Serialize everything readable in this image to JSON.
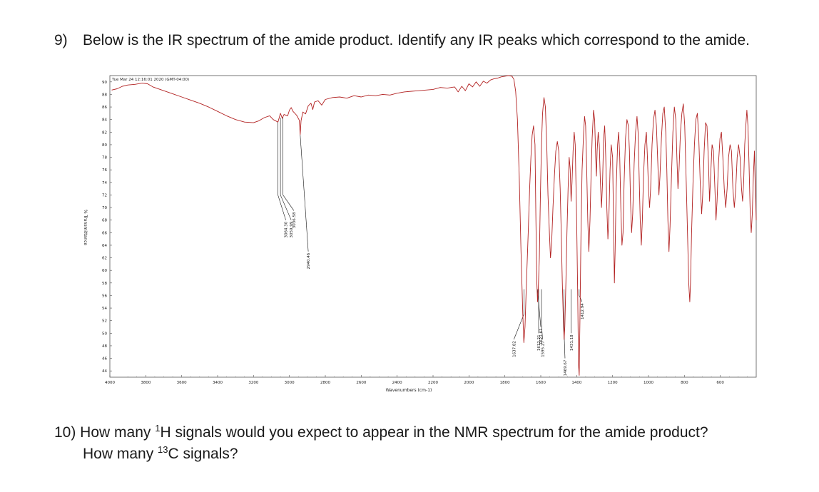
{
  "question9": {
    "number": "9)",
    "text": "Below is the IR spectrum of the amide product. Identify any IR peaks which correspond to the amide."
  },
  "question10": {
    "line1": "10) How many ",
    "h_sup": "1",
    "h_text": "H signals would you expect to appear in the NMR spectrum for the amide product?",
    "line2_pre": "How many ",
    "c_sup": "13",
    "c_text": "C signals?"
  },
  "chart_data": {
    "type": "line",
    "timestamp": "Tue Mar 24 12:16:01 2020 (GMT-04:00)",
    "xlabel": "Wavenumbers (cm-1)",
    "ylabel": "% Transmittance",
    "xlim": [
      4000,
      400
    ],
    "ylim": [
      43,
      91
    ],
    "x_ticks": [
      4000,
      3800,
      3600,
      3400,
      3200,
      3000,
      2800,
      2600,
      2400,
      2200,
      2000,
      1800,
      1600,
      1400,
      1200,
      1000,
      800,
      600
    ],
    "y_ticks": [
      44,
      46,
      48,
      50,
      52,
      54,
      56,
      58,
      60,
      62,
      64,
      66,
      68,
      70,
      72,
      74,
      76,
      78,
      80,
      82,
      84,
      86,
      88,
      90
    ],
    "line_color": "#b22222",
    "peak_labels": [
      "3064.30",
      "3059.99",
      "3036.58",
      "2940.46",
      "1637.82",
      "1621.61",
      "1595.27",
      "1612.21",
      "1469.67",
      "1431.18",
      "1412.94"
    ],
    "series": [
      {
        "points": [
          [
            3990,
            88.7
          ],
          [
            3960,
            88.9
          ],
          [
            3930,
            89.3
          ],
          [
            3900,
            89.5
          ],
          [
            3860,
            89.6
          ],
          [
            3820,
            89.8
          ],
          [
            3790,
            89.7
          ],
          [
            3760,
            89.2
          ],
          [
            3700,
            88.6
          ],
          [
            3650,
            88.1
          ],
          [
            3600,
            87.6
          ],
          [
            3550,
            87.1
          ],
          [
            3500,
            86.6
          ],
          [
            3450,
            86.0
          ],
          [
            3400,
            85.3
          ],
          [
            3350,
            84.6
          ],
          [
            3300,
            84.0
          ],
          [
            3250,
            83.6
          ],
          [
            3200,
            83.5
          ],
          [
            3170,
            83.8
          ],
          [
            3140,
            84.3
          ],
          [
            3110,
            84.6
          ],
          [
            3090,
            84.0
          ],
          [
            3064,
            83.6
          ],
          [
            3050,
            85.0
          ],
          [
            3040,
            84.2
          ],
          [
            3030,
            84.8
          ],
          [
            3010,
            84.6
          ],
          [
            3000,
            85.5
          ],
          [
            2990,
            85.9
          ],
          [
            2980,
            85.3
          ],
          [
            2960,
            84.7
          ],
          [
            2945,
            83.9
          ],
          [
            2940,
            81.6
          ],
          [
            2935,
            83.8
          ],
          [
            2925,
            85.2
          ],
          [
            2910,
            84.9
          ],
          [
            2895,
            86.2
          ],
          [
            2880,
            86.6
          ],
          [
            2870,
            85.6
          ],
          [
            2860,
            86.8
          ],
          [
            2840,
            87.0
          ],
          [
            2820,
            86.3
          ],
          [
            2800,
            87.2
          ],
          [
            2760,
            87.5
          ],
          [
            2720,
            87.6
          ],
          [
            2680,
            87.4
          ],
          [
            2640,
            87.8
          ],
          [
            2600,
            87.6
          ],
          [
            2560,
            87.9
          ],
          [
            2520,
            87.8
          ],
          [
            2480,
            88.0
          ],
          [
            2440,
            87.9
          ],
          [
            2400,
            88.2
          ],
          [
            2360,
            88.4
          ],
          [
            2320,
            88.5
          ],
          [
            2280,
            88.6
          ],
          [
            2240,
            88.7
          ],
          [
            2200,
            88.8
          ],
          [
            2160,
            89.1
          ],
          [
            2120,
            89.0
          ],
          [
            2080,
            89.2
          ],
          [
            2060,
            88.4
          ],
          [
            2040,
            89.3
          ],
          [
            2020,
            88.6
          ],
          [
            2000,
            89.7
          ],
          [
            1980,
            89.2
          ],
          [
            1960,
            90.0
          ],
          [
            1940,
            89.3
          ],
          [
            1920,
            90.1
          ],
          [
            1900,
            89.8
          ],
          [
            1880,
            90.3
          ],
          [
            1860,
            90.5
          ],
          [
            1840,
            90.6
          ],
          [
            1820,
            90.8
          ],
          [
            1800,
            90.9
          ],
          [
            1780,
            91.0
          ],
          [
            1760,
            90.9
          ],
          [
            1750,
            90.4
          ],
          [
            1740,
            88.5
          ],
          [
            1730,
            84.0
          ],
          [
            1720,
            75.0
          ],
          [
            1710,
            63.0
          ],
          [
            1700,
            53.0
          ],
          [
            1694,
            48.5
          ],
          [
            1688,
            51.0
          ],
          [
            1680,
            58.0
          ],
          [
            1670,
            66.0
          ],
          [
            1662,
            73.0
          ],
          [
            1655,
            78.0
          ],
          [
            1648,
            81.5
          ],
          [
            1640,
            83.0
          ],
          [
            1632,
            80.0
          ],
          [
            1627,
            68.0
          ],
          [
            1622,
            58.0
          ],
          [
            1618,
            55.0
          ],
          [
            1614,
            57.0
          ],
          [
            1608,
            62.0
          ],
          [
            1602,
            72.0
          ],
          [
            1596,
            80.0
          ],
          [
            1590,
            85.0
          ],
          [
            1582,
            87.5
          ],
          [
            1574,
            86.0
          ],
          [
            1566,
            79.0
          ],
          [
            1560,
            72.0
          ],
          [
            1552,
            66.0
          ],
          [
            1546,
            62.0
          ],
          [
            1540,
            64.0
          ],
          [
            1532,
            70.0
          ],
          [
            1524,
            75.0
          ],
          [
            1516,
            79.0
          ],
          [
            1508,
            80.5
          ],
          [
            1500,
            79.0
          ],
          [
            1492,
            73.0
          ],
          [
            1486,
            66.0
          ],
          [
            1480,
            58.0
          ],
          [
            1474,
            52.0
          ],
          [
            1470,
            49.0
          ],
          [
            1466,
            51.0
          ],
          [
            1460,
            58.0
          ],
          [
            1454,
            66.0
          ],
          [
            1448,
            73.0
          ],
          [
            1442,
            78.0
          ],
          [
            1436,
            76.0
          ],
          [
            1431,
            71.0
          ],
          [
            1426,
            74.0
          ],
          [
            1420,
            79.0
          ],
          [
            1414,
            82.0
          ],
          [
            1408,
            80.0
          ],
          [
            1400,
            68.0
          ],
          [
            1394,
            56.0
          ],
          [
            1390,
            45.0
          ],
          [
            1386,
            43.3
          ],
          [
            1382,
            52.0
          ],
          [
            1376,
            66.0
          ],
          [
            1370,
            76.0
          ],
          [
            1362,
            81.5
          ],
          [
            1356,
            84.5
          ],
          [
            1350,
            83.0
          ],
          [
            1344,
            76.0
          ],
          [
            1338,
            68.0
          ],
          [
            1332,
            63.0
          ],
          [
            1326,
            68.0
          ],
          [
            1320,
            75.0
          ],
          [
            1314,
            81.0
          ],
          [
            1306,
            85.5
          ],
          [
            1300,
            84.0
          ],
          [
            1294,
            78.0
          ],
          [
            1290,
            75.0
          ],
          [
            1286,
            79.0
          ],
          [
            1280,
            82.0
          ],
          [
            1274,
            80.0
          ],
          [
            1268,
            74.0
          ],
          [
            1262,
            70.0
          ],
          [
            1256,
            74.0
          ],
          [
            1250,
            81.0
          ],
          [
            1244,
            83.0
          ],
          [
            1238,
            78.0
          ],
          [
            1232,
            70.0
          ],
          [
            1226,
            65.0
          ],
          [
            1220,
            69.0
          ],
          [
            1214,
            76.0
          ],
          [
            1208,
            80.0
          ],
          [
            1200,
            78.0
          ],
          [
            1194,
            66.0
          ],
          [
            1190,
            58.0
          ],
          [
            1186,
            63.0
          ],
          [
            1180,
            73.0
          ],
          [
            1172,
            80.0
          ],
          [
            1166,
            82.0
          ],
          [
            1160,
            78.0
          ],
          [
            1154,
            70.0
          ],
          [
            1148,
            64.0
          ],
          [
            1142,
            66.0
          ],
          [
            1136,
            74.0
          ],
          [
            1128,
            81.0
          ],
          [
            1120,
            84.0
          ],
          [
            1112,
            83.0
          ],
          [
            1106,
            79.0
          ],
          [
            1100,
            71.0
          ],
          [
            1094,
            66.0
          ],
          [
            1088,
            69.0
          ],
          [
            1080,
            77.0
          ],
          [
            1072,
            82.0
          ],
          [
            1064,
            84.5
          ],
          [
            1058,
            82.0
          ],
          [
            1052,
            75.0
          ],
          [
            1046,
            68.0
          ],
          [
            1040,
            64.0
          ],
          [
            1034,
            68.0
          ],
          [
            1028,
            75.0
          ],
          [
            1020,
            80.0
          ],
          [
            1012,
            82.0
          ],
          [
            1006,
            78.0
          ],
          [
            1000,
            73.0
          ],
          [
            994,
            70.0
          ],
          [
            988,
            73.0
          ],
          [
            980,
            80.0
          ],
          [
            972,
            84.0
          ],
          [
            964,
            85.5
          ],
          [
            956,
            83.0
          ],
          [
            948,
            77.0
          ],
          [
            942,
            72.0
          ],
          [
            936,
            75.0
          ],
          [
            928,
            81.0
          ],
          [
            920,
            85.0
          ],
          [
            912,
            86.0
          ],
          [
            904,
            82.0
          ],
          [
            898,
            76.0
          ],
          [
            892,
            68.0
          ],
          [
            886,
            63.0
          ],
          [
            880,
            67.0
          ],
          [
            872,
            75.0
          ],
          [
            864,
            82.0
          ],
          [
            856,
            86.0
          ],
          [
            848,
            84.0
          ],
          [
            842,
            78.0
          ],
          [
            836,
            73.0
          ],
          [
            830,
            76.0
          ],
          [
            822,
            82.0
          ],
          [
            814,
            85.0
          ],
          [
            806,
            86.5
          ],
          [
            798,
            83.0
          ],
          [
            790,
            74.0
          ],
          [
            782,
            65.0
          ],
          [
            776,
            58.0
          ],
          [
            770,
            55.0
          ],
          [
            766,
            58.0
          ],
          [
            760,
            66.0
          ],
          [
            752,
            74.0
          ],
          [
            744,
            80.0
          ],
          [
            736,
            84.0
          ],
          [
            728,
            85.0
          ],
          [
            720,
            81.0
          ],
          [
            712,
            74.0
          ],
          [
            704,
            69.0
          ],
          [
            698,
            72.0
          ],
          [
            690,
            79.0
          ],
          [
            682,
            83.5
          ],
          [
            674,
            83.0
          ],
          [
            666,
            77.0
          ],
          [
            660,
            71.0
          ],
          [
            654,
            75.0
          ],
          [
            646,
            80.0
          ],
          [
            638,
            79.0
          ],
          [
            630,
            73.0
          ],
          [
            624,
            68.0
          ],
          [
            618,
            71.0
          ],
          [
            610,
            77.0
          ],
          [
            602,
            81.0
          ],
          [
            594,
            82.0
          ],
          [
            586,
            78.0
          ],
          [
            578,
            73.0
          ],
          [
            570,
            70.0
          ],
          [
            562,
            73.0
          ],
          [
            554,
            78.0
          ],
          [
            546,
            80.0
          ],
          [
            538,
            79.0
          ],
          [
            530,
            73.0
          ],
          [
            522,
            70.0
          ],
          [
            514,
            73.0
          ],
          [
            506,
            78.0
          ],
          [
            498,
            80.0
          ],
          [
            490,
            78.0
          ],
          [
            482,
            73.0
          ],
          [
            476,
            71.0
          ],
          [
            470,
            74.0
          ],
          [
            464,
            80.0
          ],
          [
            458,
            83.0
          ],
          [
            452,
            85.5
          ],
          [
            446,
            83.0
          ],
          [
            440,
            77.0
          ],
          [
            434,
            70.0
          ],
          [
            428,
            66.0
          ],
          [
            422,
            69.0
          ],
          [
            416,
            75.0
          ],
          [
            410,
            79.0
          ],
          [
            406,
            74.0
          ],
          [
            402,
            70.0
          ],
          [
            400,
            68.0
          ]
        ]
      }
    ]
  }
}
